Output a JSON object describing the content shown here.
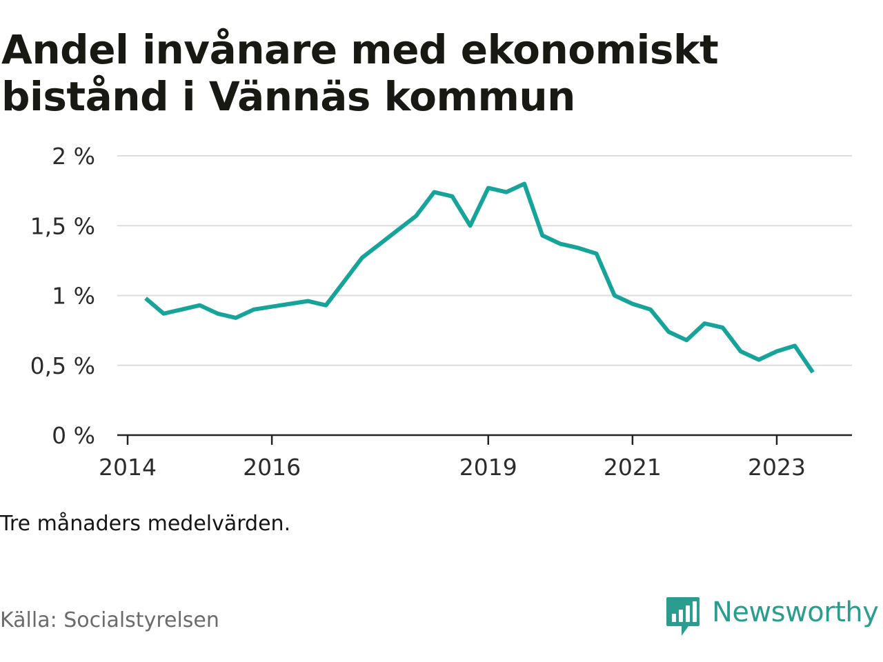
{
  "title": "Andel invånare med ekonomiskt bistånd i Vännäs kommun",
  "note": "Tre månaders medelvärden.",
  "source": "Källa: Socialstyrelsen",
  "brand": {
    "name": "Newsworthy",
    "icon": "newsworthy-logo-icon",
    "color": "#2a9d8f"
  },
  "colors": {
    "line": "#16a39a",
    "grid": "#dddddd",
    "axis": "#222222"
  },
  "chart_data": {
    "type": "line",
    "title": "Andel invånare med ekonomiskt bistånd i Vännäs kommun",
    "xlabel": "",
    "ylabel": "",
    "grid": true,
    "ylim": [
      0,
      2
    ],
    "y_ticks": [
      {
        "value": 0,
        "label": "0 %"
      },
      {
        "value": 0.5,
        "label": "0,5 %"
      },
      {
        "value": 1,
        "label": "1 %"
      },
      {
        "value": 1.5,
        "label": "1,5 %"
      },
      {
        "value": 2,
        "label": "2 %"
      }
    ],
    "x_ticks": [
      {
        "value": "2014-01",
        "label": "2014"
      },
      {
        "value": "2016-01",
        "label": "2016"
      },
      {
        "value": "2019-01",
        "label": "2019"
      },
      {
        "value": "2021-01",
        "label": "2021"
      },
      {
        "value": "2023-01",
        "label": "2023"
      }
    ],
    "series": [
      {
        "points": [
          {
            "x": "2014-04",
            "y": 0.98
          },
          {
            "x": "2014-07",
            "y": 0.87
          },
          {
            "x": "2014-10",
            "y": 0.9
          },
          {
            "x": "2015-01",
            "y": 0.93
          },
          {
            "x": "2015-04",
            "y": 0.87
          },
          {
            "x": "2015-07",
            "y": 0.84
          },
          {
            "x": "2015-10",
            "y": 0.9
          },
          {
            "x": "2016-01",
            "y": 0.92
          },
          {
            "x": "2016-04",
            "y": 0.94
          },
          {
            "x": "2016-07",
            "y": 0.96
          },
          {
            "x": "2016-10",
            "y": 0.93
          },
          {
            "x": "2017-01",
            "y": 1.1
          },
          {
            "x": "2017-04",
            "y": 1.27
          },
          {
            "x": "2017-07",
            "y": 1.37
          },
          {
            "x": "2017-10",
            "y": 1.47
          },
          {
            "x": "2018-01",
            "y": 1.57
          },
          {
            "x": "2018-04",
            "y": 1.74
          },
          {
            "x": "2018-07",
            "y": 1.71
          },
          {
            "x": "2018-10",
            "y": 1.5
          },
          {
            "x": "2019-01",
            "y": 1.77
          },
          {
            "x": "2019-04",
            "y": 1.74
          },
          {
            "x": "2019-07",
            "y": 1.8
          },
          {
            "x": "2019-10",
            "y": 1.43
          },
          {
            "x": "2020-01",
            "y": 1.37
          },
          {
            "x": "2020-04",
            "y": 1.34
          },
          {
            "x": "2020-07",
            "y": 1.3
          },
          {
            "x": "2020-10",
            "y": 1.0
          },
          {
            "x": "2021-01",
            "y": 0.94
          },
          {
            "x": "2021-04",
            "y": 0.9
          },
          {
            "x": "2021-07",
            "y": 0.74
          },
          {
            "x": "2021-10",
            "y": 0.68
          },
          {
            "x": "2022-01",
            "y": 0.8
          },
          {
            "x": "2022-04",
            "y": 0.77
          },
          {
            "x": "2022-07",
            "y": 0.6
          },
          {
            "x": "2022-10",
            "y": 0.54
          },
          {
            "x": "2023-01",
            "y": 0.6
          },
          {
            "x": "2023-04",
            "y": 0.64
          },
          {
            "x": "2023-07",
            "y": 0.45
          }
        ]
      }
    ]
  }
}
